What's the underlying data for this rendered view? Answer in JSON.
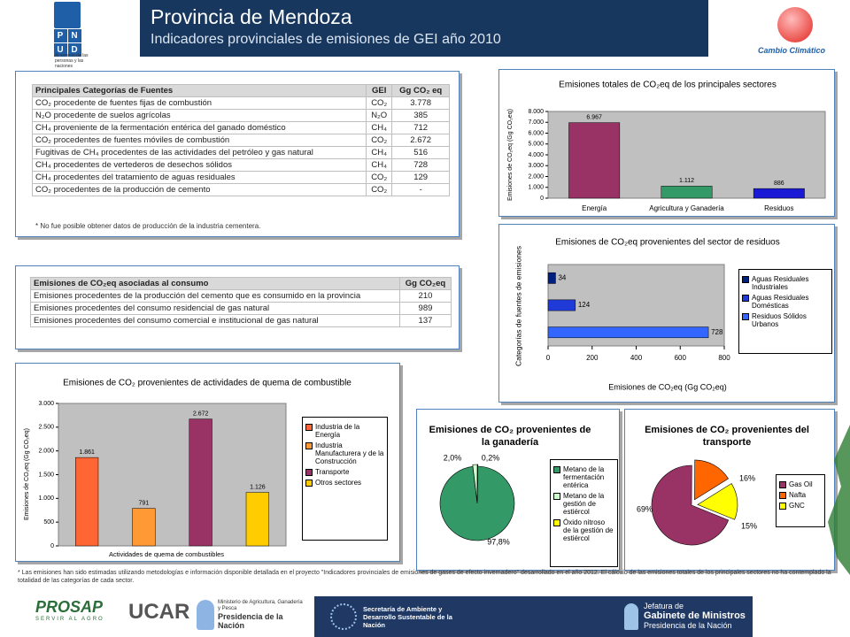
{
  "header": {
    "title": "Provincia de Mendoza",
    "subtitle": "Indicadores provinciales de emisiones de GEI año 2010"
  },
  "logos": {
    "pnud": [
      "P",
      "N",
      "U",
      "D"
    ],
    "pnud_motto": "Al servicio de las personas y las naciones",
    "cambio": "Cambio Climático",
    "prosap": "PROSAP",
    "prosap_motto": "SERVIR AL AGRO",
    "ucar": "UCAR",
    "ministerio": "Ministerio de Agricultura, Ganadería y Pesca",
    "ministerio_pres": "Presidencia de la Nación",
    "sayds": "Secretaría de Ambiente y Desarrollo Sustentable de la Nación",
    "jefatura_1": "Jefatura de",
    "jefatura_2": "Gabinete de Ministros",
    "jefatura_pres": "Presidencia de la Nación"
  },
  "tables": [
    {
      "header": [
        "Principales Categorías de Fuentes",
        "GEI",
        "Gg CO₂ eq"
      ],
      "rows": [
        [
          "CO₂ procedente de fuentes fijas de combustión",
          "CO₂",
          "3.778"
        ],
        [
          "N₂O procedente de suelos agrícolas",
          "N₂O",
          "385"
        ],
        [
          "CH₄ proveniente de la fermentación entérica del ganado doméstico",
          "CH₄",
          "712"
        ],
        [
          "CO₂ procedentes de fuentes móviles de combustión",
          "CO₂",
          "2.672"
        ],
        [
          "Fugitivas de CH₄ procedentes de las actividades del petróleo y gas natural",
          "CH₄",
          "516"
        ],
        [
          "CH₄ procedentes de vertederos de desechos sólidos",
          "CH₄",
          "728"
        ],
        [
          "CH₄ procedentes del tratamiento de aguas residuales",
          "CO₂",
          "129"
        ],
        [
          "CO₂ procedentes de la producción de cemento",
          "CO₂",
          "-"
        ]
      ],
      "note": "* No fue posible obtener datos de producción de la industria cementera."
    },
    {
      "header": [
        "Emisiones de CO₂eq asociadas al consumo",
        "Gg CO₂eq"
      ],
      "rows": [
        [
          "Emisiones procedentes de la producción del cemento que es consumido en la provincia",
          "210"
        ],
        [
          "Emisiones procedentes del consumo residencial de gas natural",
          "989"
        ],
        [
          "Emisiones procedentes del consumo comercial e institucional de gas natural",
          "137"
        ]
      ]
    }
  ],
  "chart_data": [
    {
      "type": "bar",
      "title": "Emisiones totales de CO₂eq de los principales sectores",
      "ylabel": "Emisiones de CO₂eq (Gg CO₂eq)",
      "categories": [
        "Energía",
        "Agricultura y Ganadería",
        "Residuos"
      ],
      "values": [
        6967,
        1112,
        886
      ],
      "value_labels": [
        "6.967",
        "1.112",
        "886"
      ],
      "colors": [
        "#993366",
        "#339966",
        "#1a1ad6"
      ],
      "legend": false,
      "ylim": [
        0,
        8000
      ],
      "yticks": [
        0,
        {
          "value": 1000,
          "label": "1.000"
        },
        {
          "value": 2000,
          "label": "2.000"
        },
        {
          "value": 3000,
          "label": "3.000"
        },
        {
          "value": 4000,
          "label": "4.000"
        },
        {
          "value": 5000,
          "label": "5.000"
        },
        {
          "value": 6000,
          "label": "6.000"
        },
        {
          "value": 7000,
          "label": "7.000"
        },
        {
          "value": 8000,
          "label": "8.000"
        }
      ]
    },
    {
      "type": "bar",
      "orientation": "horizontal",
      "title": "Emisiones de CO₂eq provenientes del sector de residuos",
      "ylabel": "Categorías de fuentes de emisiones",
      "xlabel": "Emisiones de CO₂eq (Gg CO₂eq)",
      "categories": [
        "Aguas Residuales Industriales",
        "Aguas Residuales Domésticas",
        "Residuos Sólidos Urbanos"
      ],
      "values": [
        34,
        124,
        728
      ],
      "colors": [
        "#002080",
        "#1f3ad6",
        "#3366ff"
      ],
      "legend": true,
      "xlim": [
        0,
        800
      ],
      "xticks": [
        0,
        200,
        400,
        600,
        800
      ]
    },
    {
      "type": "bar",
      "title": "Emisiones de CO₂ provenientes de actividades de quema de combustible",
      "ylabel": "Emisiones de CO₂eq (Gg CO₂eq)",
      "xlabel": "Actividades de quema de combustibles",
      "categories": [
        "Industria de la Energía",
        "Industria Manufacturera y de la Construcción",
        "Transporte",
        "Otros sectores"
      ],
      "values": [
        1861,
        791,
        2672,
        1126
      ],
      "value_labels": [
        "1.861",
        "791",
        "2.672",
        "1.126"
      ],
      "colors": [
        "#ff6633",
        "#ff9933",
        "#993366",
        "#ffcc00"
      ],
      "legend": true,
      "ylim": [
        0,
        3000
      ],
      "yticks": [
        0,
        500,
        {
          "value": 1000,
          "label": "1.000"
        },
        {
          "value": 1500,
          "label": "1.500"
        },
        {
          "value": 2000,
          "label": "2.000"
        },
        {
          "value": 2500,
          "label": "2.500"
        },
        {
          "value": 3000,
          "label": "3.000"
        }
      ]
    },
    {
      "type": "pie",
      "title": "Emisiones de CO₂ provenientes de la ganadería",
      "categories": [
        "Metano de la fermentación entérica",
        "Metano de la gestión de estiércol",
        "Óxido nitroso de la gestión de estiércol"
      ],
      "values": [
        97.8,
        2.0,
        0.2
      ],
      "value_labels": [
        "97,8%",
        "2,0%",
        "0,2%"
      ],
      "colors": [
        "#339966",
        "#ccffcc",
        "#ffff00"
      ]
    },
    {
      "type": "pie",
      "title": "Emisiones de CO₂ provenientes del transporte",
      "categories": [
        "Gas Oil",
        "Nafta",
        "GNC"
      ],
      "values": [
        69,
        16,
        15
      ],
      "value_labels": [
        "69%",
        "16%",
        "15%"
      ],
      "colors": [
        "#993366",
        "#ff6600",
        "#ffff00"
      ]
    }
  ],
  "footnote": "* Las emisiones han sido estimadas utilizando metodologías e información disponible detallada en el proyecto \"Indicadores provinciales de emisiones de gases de efecto invernadero\" desarrollado en el año 2012. El cálculo de las emisiones totales de los principales sectores no ha contemplado la totalidad de las categorías de cada sector."
}
